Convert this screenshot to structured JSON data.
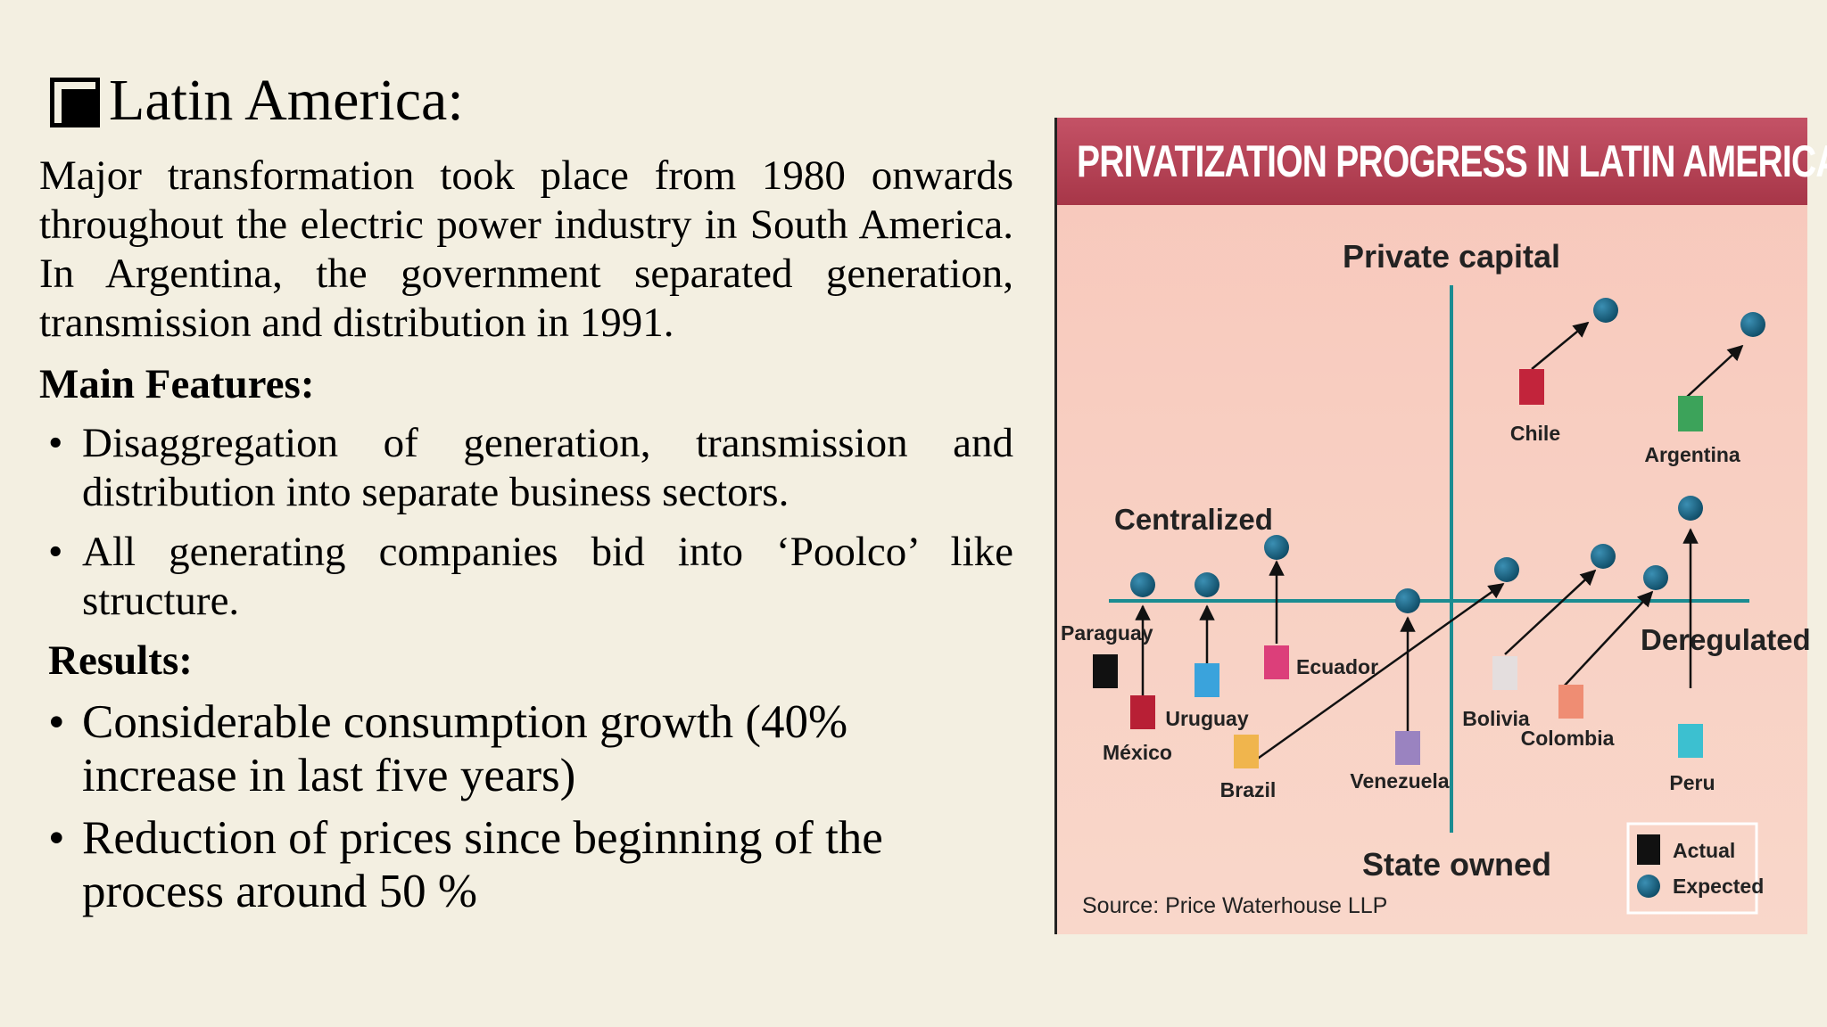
{
  "heading": "Latin America:",
  "intro": "Major transformation took place from 1980 onwards throughout the electric power industry in South America. In Argentina, the government separated generation, transmission and distribution in 1991.",
  "features_heading": "Main Features:",
  "features": [
    "Disaggregation of generation, transmission and distribution into separate business sectors.",
    "All generating companies bid into ‘Poolco’ like structure."
  ],
  "results_heading": "Results:",
  "results": [
    "Considerable consumption growth (40% increase in last five years)",
    "Reduction of prices since beginning of the process around 50 %"
  ],
  "bullet": "•",
  "chart": {
    "title": "PRIVATIZATION PROGRESS IN LATIN AMERICA",
    "axis_top": "Private capital",
    "axis_bottom": "State owned",
    "axis_left": "Centralized",
    "axis_right": "Deregulated",
    "source": "Source: Price Waterhouse LLP",
    "legend": {
      "actual": "Actual",
      "expected": "Expected"
    },
    "colors": {
      "axis": "#1b8c91",
      "expected": "#1d6b8c",
      "title_bar": "#b2404f"
    },
    "countries": [
      {
        "name": "Paraguay",
        "color": "#111111"
      },
      {
        "name": "México",
        "color": "#b81f35"
      },
      {
        "name": "Uruguay",
        "color": "#3aa3dc"
      },
      {
        "name": "Ecuador",
        "color": "#dc3f7a"
      },
      {
        "name": "Brazil",
        "color": "#f0b54d"
      },
      {
        "name": "Venezuela",
        "color": "#9a83c0"
      },
      {
        "name": "Chile",
        "color": "#c2243b"
      },
      {
        "name": "Argentina",
        "color": "#3ca35a"
      },
      {
        "name": "Bolivia",
        "color": "#e4dede"
      },
      {
        "name": "Colombia",
        "color": "#ef8d73"
      },
      {
        "name": "Peru",
        "color": "#3cc0d0"
      }
    ]
  }
}
